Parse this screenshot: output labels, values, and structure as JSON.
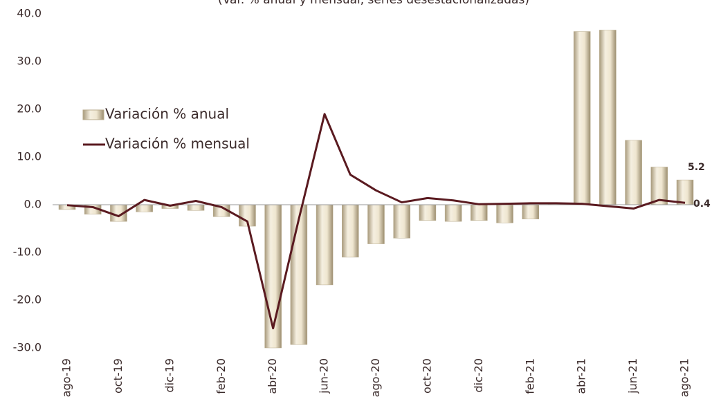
{
  "chart_data": {
    "type": "bar_line",
    "subtitle": "(Var. % anual y mensual, series desestacionalizadas)",
    "categories": [
      "ago-19",
      null,
      "oct-19",
      null,
      "dic-19",
      null,
      "feb-20",
      null,
      "abr-20",
      null,
      "jun-20",
      null,
      "ago-20",
      null,
      "oct-20",
      null,
      "dic-20",
      null,
      "feb-21",
      null,
      "abr-21",
      null,
      "jun-21",
      null,
      "ago-21"
    ],
    "series": [
      {
        "name": "Variación % anual",
        "type": "bar",
        "color": "#e6dcc3",
        "values": [
          -1.0,
          -2.0,
          -3.5,
          -1.5,
          -0.8,
          -1.2,
          -2.5,
          -4.5,
          -30.0,
          -29.3,
          -16.8,
          -11.0,
          -8.2,
          -7.0,
          -3.3,
          -3.5,
          -3.3,
          -3.8,
          -3.0,
          0.3,
          36.3,
          36.6,
          13.5,
          7.9,
          5.2
        ]
      },
      {
        "name": "Variación % mensual",
        "type": "line",
        "color": "#5a1a20",
        "values": [
          -0.1,
          -0.5,
          -2.4,
          1.0,
          -0.2,
          0.8,
          -0.5,
          -3.5,
          -25.9,
          -3.0,
          19.0,
          6.3,
          3.0,
          0.5,
          1.4,
          0.9,
          0.1,
          0.2,
          0.3,
          0.3,
          0.2,
          -0.3,
          -0.8,
          1.0,
          0.4
        ]
      }
    ],
    "ylim": [
      -30,
      40
    ],
    "yticks": [
      {
        "value": -30,
        "label": "-30.0"
      },
      {
        "value": -20,
        "label": "-20.0"
      },
      {
        "value": -10,
        "label": "-10.0"
      },
      {
        "value": 0,
        "label": "0.0"
      },
      {
        "value": 10,
        "label": "10.0"
      },
      {
        "value": 20,
        "label": "20.0"
      },
      {
        "value": 30,
        "label": "30.0"
      },
      {
        "value": 40,
        "label": "40.0"
      }
    ],
    "legend": "upper left"
  }
}
